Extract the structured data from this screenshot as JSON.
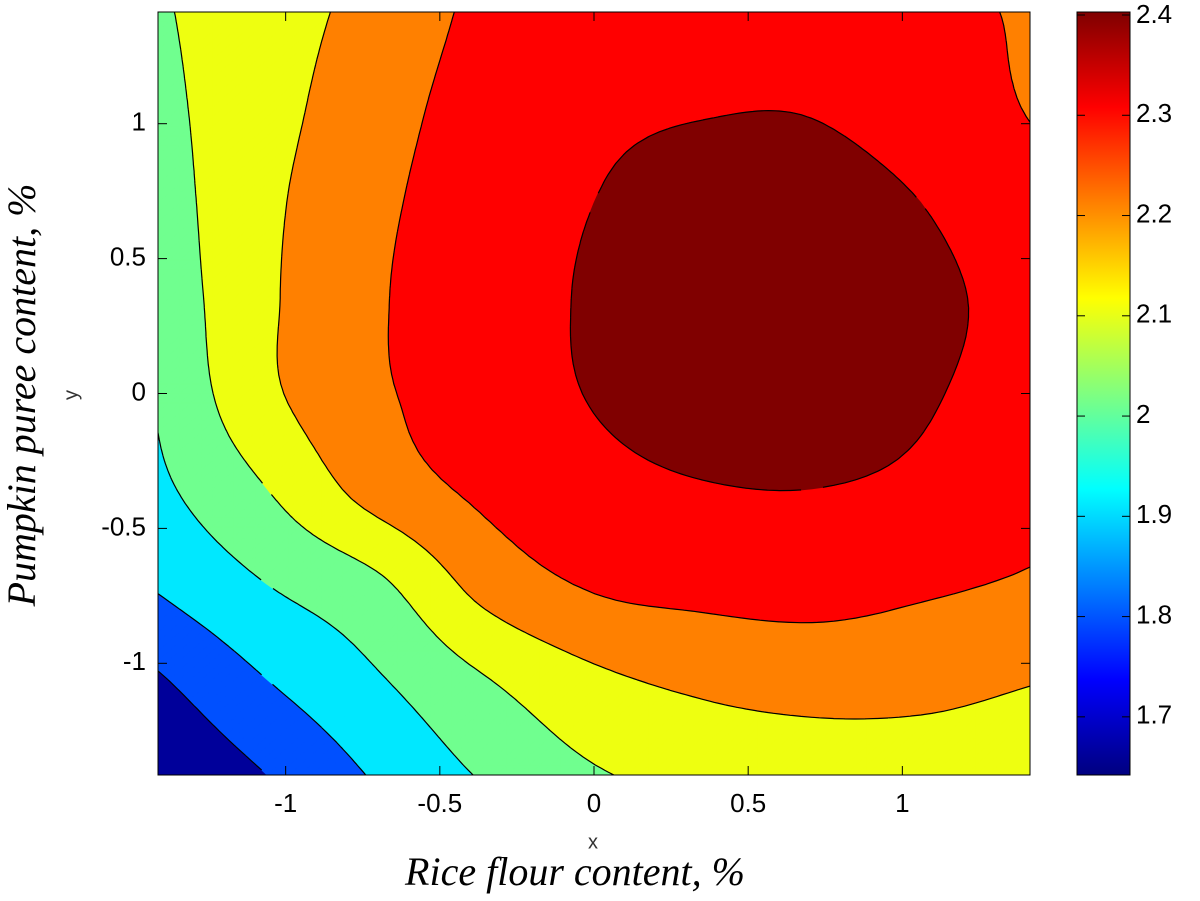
{
  "chart_data": {
    "type": "contour",
    "xlabel": "Rice flour content, %",
    "ylabel": "Pumpkin puree content, %",
    "xname": "x",
    "yname": "y",
    "xlim": [
      -1.414,
      1.414
    ],
    "ylim": [
      -1.414,
      1.414
    ],
    "xticks": [
      -1,
      -0.5,
      0,
      0.5,
      1
    ],
    "yticks": [
      -1,
      -0.5,
      0,
      0.5,
      1
    ],
    "x": [
      -1.414,
      -1.061,
      -0.707,
      -0.354,
      0,
      0.354,
      0.707,
      1.061,
      1.414
    ],
    "y": [
      -1.414,
      -1.061,
      -0.707,
      -0.354,
      0,
      0.354,
      0.707,
      1.061,
      1.414
    ],
    "z": [
      [
        1.6,
        1.7,
        1.81,
        1.91,
        1.99,
        2.03,
        2.05,
        2.05,
        2.04
      ],
      [
        1.69,
        1.8,
        1.89,
        1.995,
        2.08,
        2.12,
        2.135,
        2.13,
        2.105
      ],
      [
        1.81,
        1.9,
        1.98,
        2.134,
        2.21,
        2.23,
        2.24,
        2.215,
        2.19
      ],
      [
        1.88,
        2.0,
        2.14,
        2.22,
        2.27,
        2.295,
        2.3,
        2.28,
        2.23
      ],
      [
        1.91,
        2.08,
        2.185,
        2.25,
        2.305,
        2.34,
        2.345,
        2.31,
        2.26
      ],
      [
        1.935,
        2.085,
        2.19,
        2.255,
        2.31,
        2.345,
        2.35,
        2.32,
        2.27
      ],
      [
        1.955,
        2.08,
        2.18,
        2.25,
        2.3,
        2.33,
        2.335,
        2.3,
        2.24
      ],
      [
        1.975,
        2.066,
        2.16,
        2.24,
        2.28,
        2.295,
        2.295,
        2.255,
        2.195
      ],
      [
        1.99,
        2.057,
        2.133,
        2.22,
        2.24,
        2.255,
        2.25,
        2.225,
        2.19
      ]
    ],
    "levels": [
      1.7,
      1.8,
      1.9,
      2,
      2.1,
      2.2,
      2.3
    ],
    "colors": [
      "#00009a",
      "#0050ff",
      "#00e8ff",
      "#70ff8f",
      "#eeff10",
      "#ff8000",
      "#ff0000",
      "#800000"
    ],
    "colorbar": {
      "colormap": "jet",
      "clim": [
        1.642,
        2.403
      ],
      "ticks": [
        1.7,
        1.8,
        1.9,
        2,
        2.1,
        2.2,
        2.3,
        2.4
      ]
    }
  }
}
